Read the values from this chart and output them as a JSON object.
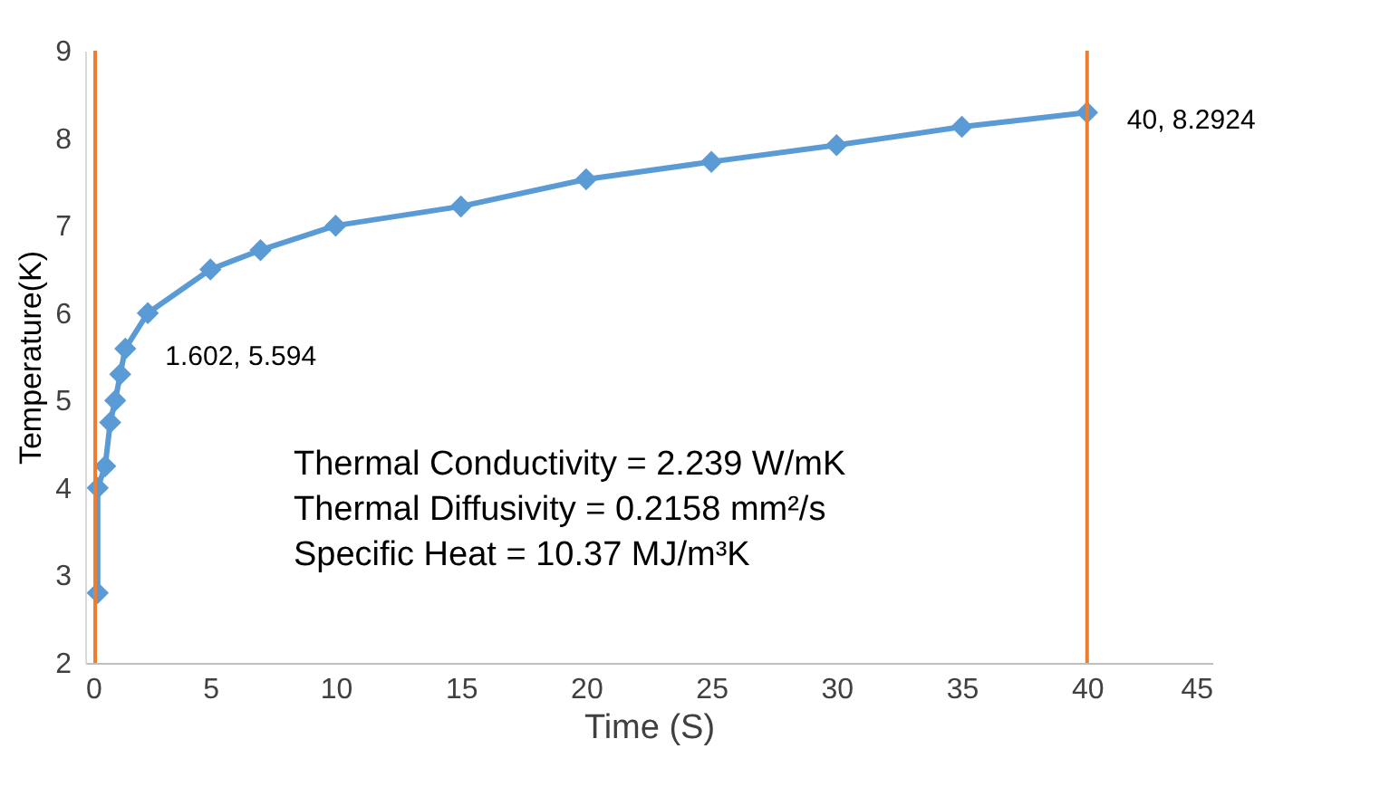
{
  "chart_data": {
    "type": "line",
    "xlabel": "Time (S)",
    "ylabel": "Temperature(K)",
    "x": [
      0.5,
      0.5,
      0.8,
      1.0,
      1.2,
      1.4,
      1.602,
      2.5,
      5,
      7,
      10,
      15,
      20,
      25,
      30,
      35,
      40
    ],
    "series": [
      {
        "color": "#5b9bd5",
        "values": [
          2.8,
          4.0,
          4.25,
          4.75,
          5.0,
          5.3,
          5.594,
          6.0,
          6.5,
          6.72,
          7.0,
          7.22,
          7.53,
          7.73,
          7.92,
          8.13,
          8.2924
        ]
      }
    ],
    "xlim": [
      0,
      45
    ],
    "xticks": [
      0,
      5,
      10,
      15,
      20,
      25,
      30,
      35,
      40,
      45
    ],
    "ylim": [
      2,
      9
    ],
    "yticks": [
      2,
      3,
      4,
      5,
      6,
      7,
      8,
      9
    ],
    "marker": "diamond",
    "grid": false,
    "ref_lines": [
      {
        "axis": "x",
        "value": 0.4,
        "color": "#ed7d31"
      },
      {
        "axis": "x",
        "value": 40,
        "color": "#ed7d31"
      }
    ],
    "annotations": [
      {
        "text": "1.602, 5.594",
        "x": 1.602,
        "y": 5.594
      },
      {
        "text": "40, 8.2924",
        "x": 40,
        "y": 8.2924
      },
      "Thermal Conductivity = 2.239  W/mK",
      "Thermal Diffusivity =  0.2158 mm²/s",
      "Specific Heat = 10.37 MJ/m³K"
    ]
  }
}
